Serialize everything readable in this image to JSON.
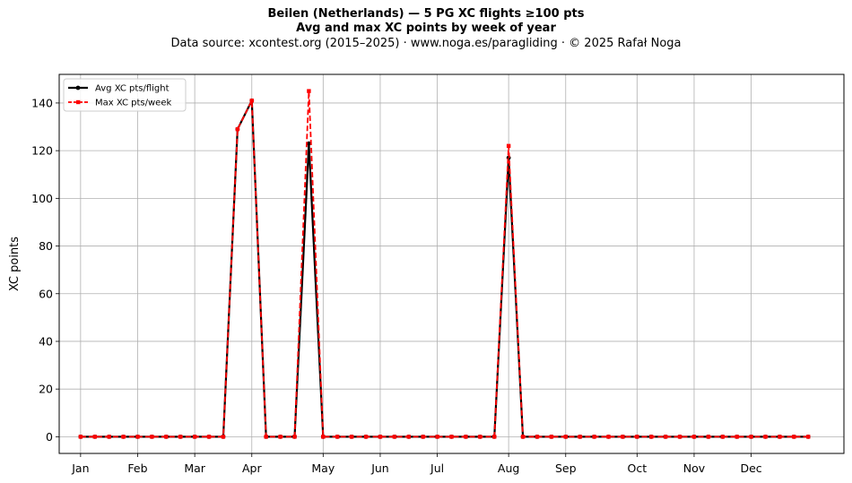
{
  "header": {
    "title": "Beilen (Netherlands)  —  5 PG XC flights ≥100 pts",
    "subtitle": "Avg and max XC points by week of year",
    "source": "Data source: xcontest.org (2015–2025)  ·  www.noga.es/paragliding  ·  © 2025 Rafał Noga"
  },
  "chart_data": {
    "type": "line",
    "xlabel": "",
    "ylabel": "XC points",
    "xlim": [
      -1.5,
      53.5
    ],
    "ylim": [
      -7,
      152
    ],
    "yticks": [
      0,
      20,
      40,
      60,
      80,
      100,
      120,
      140
    ],
    "xticks": [
      {
        "week": 0,
        "label": "Jan"
      },
      {
        "week": 4,
        "label": "Feb"
      },
      {
        "week": 8,
        "label": "Mar"
      },
      {
        "week": 12,
        "label": "Apr"
      },
      {
        "week": 17,
        "label": "May"
      },
      {
        "week": 21,
        "label": "Jun"
      },
      {
        "week": 25,
        "label": "Jul"
      },
      {
        "week": 30,
        "label": "Aug"
      },
      {
        "week": 34,
        "label": "Sep"
      },
      {
        "week": 39,
        "label": "Oct"
      },
      {
        "week": 43,
        "label": "Nov"
      },
      {
        "week": 47,
        "label": "Dec"
      }
    ],
    "grid": true,
    "legend_position": "top-left",
    "weeks": [
      0,
      1,
      2,
      3,
      4,
      5,
      6,
      7,
      8,
      9,
      10,
      11,
      12,
      13,
      14,
      15,
      16,
      17,
      18,
      19,
      20,
      21,
      22,
      23,
      24,
      25,
      26,
      27,
      28,
      29,
      30,
      31,
      32,
      33,
      34,
      35,
      36,
      37,
      38,
      39,
      40,
      41,
      42,
      43,
      44,
      45,
      46,
      47,
      48,
      49,
      50,
      51
    ],
    "series": [
      {
        "name": "Avg XC pts/flight",
        "color": "#000000",
        "style": "solid",
        "marker": "circle",
        "values": [
          0,
          0,
          0,
          0,
          0,
          0,
          0,
          0,
          0,
          0,
          0,
          129,
          141,
          0,
          0,
          0,
          123,
          0,
          0,
          0,
          0,
          0,
          0,
          0,
          0,
          0,
          0,
          0,
          0,
          0,
          117,
          0,
          0,
          0,
          0,
          0,
          0,
          0,
          0,
          0,
          0,
          0,
          0,
          0,
          0,
          0,
          0,
          0,
          0,
          0,
          0,
          0
        ]
      },
      {
        "name": "Max XC pts/week",
        "color": "#ff0000",
        "style": "dashed",
        "marker": "square",
        "values": [
          0,
          0,
          0,
          0,
          0,
          0,
          0,
          0,
          0,
          0,
          0,
          129,
          141,
          0,
          0,
          0,
          145,
          0,
          0,
          0,
          0,
          0,
          0,
          0,
          0,
          0,
          0,
          0,
          0,
          0,
          122,
          0,
          0,
          0,
          0,
          0,
          0,
          0,
          0,
          0,
          0,
          0,
          0,
          0,
          0,
          0,
          0,
          0,
          0,
          0,
          0,
          0
        ]
      }
    ]
  }
}
